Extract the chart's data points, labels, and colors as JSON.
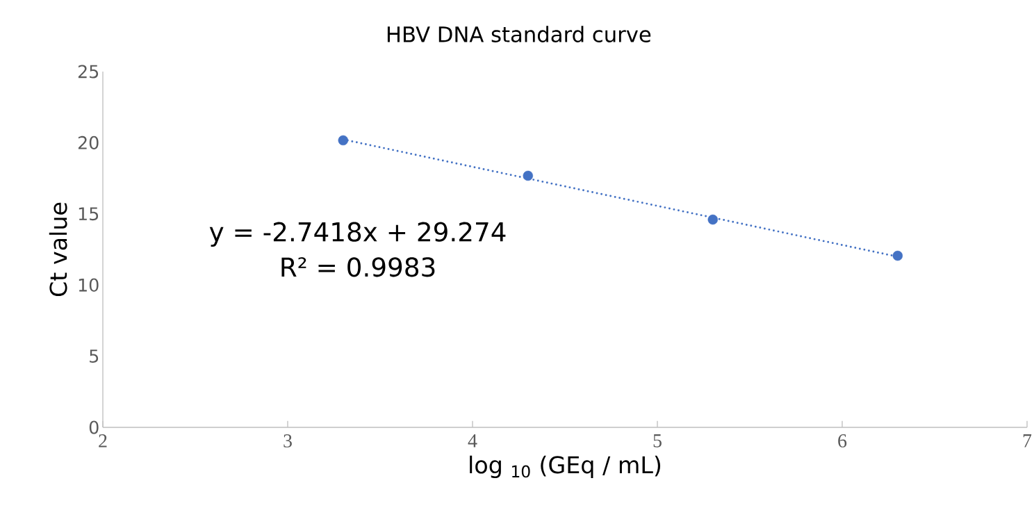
{
  "chart_data": {
    "type": "scatter",
    "title": "HBV DNA standard curve",
    "xlabel": "log $_{10}$ (GEq / mL)",
    "ylabel": "Ct value",
    "x": [
      3.3,
      4.3,
      5.3,
      6.3
    ],
    "series": [
      {
        "color": "#4472c4",
        "marker": "circle",
        "values": [
          20.17,
          17.68,
          14.6,
          12.06
        ]
      },
      {
        "type": "line",
        "color": "#4472c4",
        "line_style": "dotted",
        "marker": "none",
        "x": [
          3.3,
          6.3
        ],
        "values": [
          20.23,
          11.99
        ]
      }
    ],
    "annotations": [
      "y = -2.7418x + 29.274",
      "R² = 0.9983"
    ],
    "xlim": [
      2,
      7
    ],
    "xticks": [
      2,
      3,
      4,
      5,
      6,
      7
    ],
    "ylim": [
      0,
      25
    ],
    "yticks": [
      0,
      5,
      10,
      15,
      20,
      25
    ],
    "grid": false
  }
}
